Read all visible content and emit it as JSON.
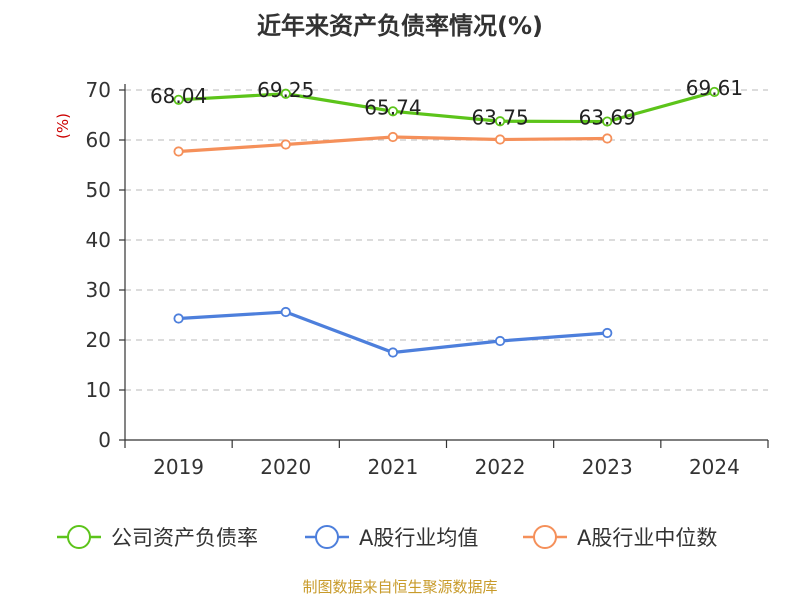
{
  "chart_data": {
    "type": "line",
    "title": "近年来资产负债率情况(%)",
    "ylabel": "(%)",
    "xlabel": "",
    "ylim": [
      0,
      70
    ],
    "yticks": [
      0,
      10,
      20,
      30,
      40,
      50,
      60,
      70
    ],
    "categories": [
      "2019",
      "2020",
      "2021",
      "2022",
      "2023",
      "2024"
    ],
    "series": [
      {
        "name": "公司资产负债率",
        "color": "#5cc41a",
        "values": [
          68.04,
          69.25,
          65.74,
          63.75,
          63.69,
          69.61
        ],
        "labels": [
          "68.04",
          "69.25",
          "65.74",
          "63.75",
          "63.69",
          "69.61"
        ]
      },
      {
        "name": "A股行业均值",
        "color": "#4d7fdc",
        "values": [
          24.3,
          25.6,
          17.5,
          19.8,
          21.4,
          null
        ]
      },
      {
        "name": "A股行业中位数",
        "color": "#f5905a",
        "values": [
          57.7,
          59.1,
          60.6,
          60.1,
          60.3,
          null
        ]
      }
    ],
    "grid": true,
    "legend_position": "bottom"
  },
  "source_note": "制图数据来自恒生聚源数据库"
}
